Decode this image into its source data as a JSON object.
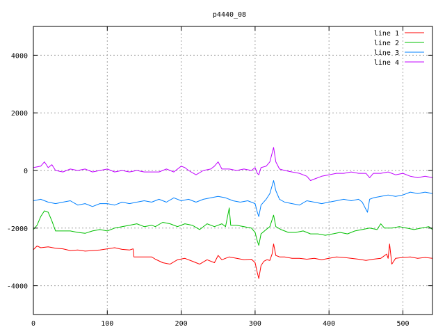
{
  "chart_data": {
    "type": "line",
    "title": "p4440_08",
    "xlabel": "",
    "ylabel": "",
    "xlim": [
      0,
      540
    ],
    "ylim": [
      -5000,
      5000
    ],
    "x_ticks": [
      0,
      100,
      200,
      300,
      400,
      500
    ],
    "y_ticks": [
      -4000,
      -2000,
      0,
      2000,
      4000
    ],
    "grid": true,
    "legend_position": "top-right",
    "series": [
      {
        "name": "line 1",
        "color": "#ff0000",
        "points": [
          [
            0,
            -2750
          ],
          [
            5,
            -2620
          ],
          [
            10,
            -2680
          ],
          [
            20,
            -2650
          ],
          [
            30,
            -2700
          ],
          [
            40,
            -2720
          ],
          [
            50,
            -2780
          ],
          [
            60,
            -2760
          ],
          [
            70,
            -2800
          ],
          [
            80,
            -2780
          ],
          [
            90,
            -2760
          ],
          [
            100,
            -2720
          ],
          [
            110,
            -2680
          ],
          [
            120,
            -2740
          ],
          [
            130,
            -2760
          ],
          [
            135,
            -2720
          ],
          [
            136,
            -3000
          ],
          [
            150,
            -3000
          ],
          [
            160,
            -3000
          ],
          [
            165,
            -3080
          ],
          [
            175,
            -3200
          ],
          [
            185,
            -3250
          ],
          [
            195,
            -3100
          ],
          [
            205,
            -3050
          ],
          [
            215,
            -3150
          ],
          [
            225,
            -3250
          ],
          [
            235,
            -3100
          ],
          [
            245,
            -3200
          ],
          [
            250,
            -2950
          ],
          [
            255,
            -3100
          ],
          [
            265,
            -3000
          ],
          [
            275,
            -3050
          ],
          [
            285,
            -3100
          ],
          [
            295,
            -3080
          ],
          [
            300,
            -3200
          ],
          [
            303,
            -3550
          ],
          [
            305,
            -3750
          ],
          [
            308,
            -3300
          ],
          [
            312,
            -3150
          ],
          [
            316,
            -3100
          ],
          [
            320,
            -3120
          ],
          [
            323,
            -2900
          ],
          [
            325,
            -2550
          ],
          [
            328,
            -2950
          ],
          [
            333,
            -3000
          ],
          [
            340,
            -3000
          ],
          [
            350,
            -3050
          ],
          [
            360,
            -3050
          ],
          [
            370,
            -3080
          ],
          [
            380,
            -3050
          ],
          [
            390,
            -3100
          ],
          [
            400,
            -3050
          ],
          [
            410,
            -3000
          ],
          [
            420,
            -3020
          ],
          [
            430,
            -3050
          ],
          [
            440,
            -3080
          ],
          [
            450,
            -3120
          ],
          [
            460,
            -3080
          ],
          [
            470,
            -3050
          ],
          [
            478,
            -2900
          ],
          [
            480,
            -3050
          ],
          [
            482,
            -2550
          ],
          [
            485,
            -3250
          ],
          [
            490,
            -3050
          ],
          [
            500,
            -3020
          ],
          [
            510,
            -3000
          ],
          [
            520,
            -3050
          ],
          [
            530,
            -3020
          ],
          [
            540,
            -3050
          ]
        ]
      },
      {
        "name": "line 2",
        "color": "#00c000",
        "points": [
          [
            0,
            -2050
          ],
          [
            5,
            -1900
          ],
          [
            10,
            -1600
          ],
          [
            15,
            -1400
          ],
          [
            20,
            -1450
          ],
          [
            25,
            -1750
          ],
          [
            30,
            -2100
          ],
          [
            40,
            -2100
          ],
          [
            50,
            -2100
          ],
          [
            60,
            -2150
          ],
          [
            70,
            -2180
          ],
          [
            80,
            -2100
          ],
          [
            90,
            -2050
          ],
          [
            100,
            -2100
          ],
          [
            110,
            -2000
          ],
          [
            120,
            -1950
          ],
          [
            130,
            -1900
          ],
          [
            140,
            -1850
          ],
          [
            150,
            -1950
          ],
          [
            160,
            -1900
          ],
          [
            165,
            -1950
          ],
          [
            175,
            -1800
          ],
          [
            185,
            -1850
          ],
          [
            195,
            -1950
          ],
          [
            205,
            -1850
          ],
          [
            215,
            -1900
          ],
          [
            225,
            -2050
          ],
          [
            235,
            -1850
          ],
          [
            245,
            -1950
          ],
          [
            255,
            -1850
          ],
          [
            260,
            -1950
          ],
          [
            265,
            -1300
          ],
          [
            267,
            -1900
          ],
          [
            275,
            -1900
          ],
          [
            285,
            -1950
          ],
          [
            295,
            -2000
          ],
          [
            300,
            -2150
          ],
          [
            303,
            -2450
          ],
          [
            305,
            -2600
          ],
          [
            308,
            -2200
          ],
          [
            315,
            -2050
          ],
          [
            320,
            -1950
          ],
          [
            325,
            -1550
          ],
          [
            328,
            -1950
          ],
          [
            335,
            -2050
          ],
          [
            345,
            -2150
          ],
          [
            355,
            -2150
          ],
          [
            365,
            -2100
          ],
          [
            375,
            -2200
          ],
          [
            385,
            -2200
          ],
          [
            395,
            -2250
          ],
          [
            405,
            -2200
          ],
          [
            415,
            -2150
          ],
          [
            425,
            -2200
          ],
          [
            435,
            -2100
          ],
          [
            445,
            -2050
          ],
          [
            455,
            -2000
          ],
          [
            465,
            -2050
          ],
          [
            470,
            -1850
          ],
          [
            475,
            -2000
          ],
          [
            485,
            -2000
          ],
          [
            495,
            -1950
          ],
          [
            505,
            -2000
          ],
          [
            515,
            -2050
          ],
          [
            525,
            -2000
          ],
          [
            535,
            -1950
          ],
          [
            540,
            -2050
          ]
        ]
      },
      {
        "name": "line 3",
        "color": "#0080ff",
        "points": [
          [
            0,
            -1050
          ],
          [
            10,
            -1000
          ],
          [
            20,
            -1100
          ],
          [
            30,
            -1150
          ],
          [
            40,
            -1100
          ],
          [
            50,
            -1050
          ],
          [
            60,
            -1200
          ],
          [
            70,
            -1150
          ],
          [
            80,
            -1250
          ],
          [
            90,
            -1150
          ],
          [
            100,
            -1150
          ],
          [
            110,
            -1200
          ],
          [
            120,
            -1100
          ],
          [
            130,
            -1150
          ],
          [
            140,
            -1100
          ],
          [
            150,
            -1050
          ],
          [
            160,
            -1100
          ],
          [
            170,
            -1000
          ],
          [
            180,
            -1100
          ],
          [
            190,
            -950
          ],
          [
            200,
            -1050
          ],
          [
            210,
            -1000
          ],
          [
            220,
            -1100
          ],
          [
            230,
            -1000
          ],
          [
            240,
            -950
          ],
          [
            250,
            -900
          ],
          [
            260,
            -950
          ],
          [
            270,
            -1050
          ],
          [
            280,
            -1100
          ],
          [
            290,
            -1050
          ],
          [
            300,
            -1150
          ],
          [
            303,
            -1450
          ],
          [
            305,
            -1600
          ],
          [
            308,
            -1200
          ],
          [
            315,
            -1000
          ],
          [
            320,
            -800
          ],
          [
            325,
            -350
          ],
          [
            328,
            -700
          ],
          [
            333,
            -1000
          ],
          [
            340,
            -1100
          ],
          [
            350,
            -1150
          ],
          [
            360,
            -1200
          ],
          [
            370,
            -1050
          ],
          [
            380,
            -1100
          ],
          [
            390,
            -1150
          ],
          [
            400,
            -1100
          ],
          [
            410,
            -1050
          ],
          [
            420,
            -1000
          ],
          [
            430,
            -1050
          ],
          [
            440,
            -1000
          ],
          [
            445,
            -1100
          ],
          [
            450,
            -1350
          ],
          [
            452,
            -1450
          ],
          [
            455,
            -1000
          ],
          [
            460,
            -950
          ],
          [
            470,
            -900
          ],
          [
            480,
            -850
          ],
          [
            490,
            -900
          ],
          [
            500,
            -850
          ],
          [
            510,
            -750
          ],
          [
            520,
            -800
          ],
          [
            530,
            -750
          ],
          [
            540,
            -800
          ]
        ]
      },
      {
        "name": "line 4",
        "color": "#c000ff",
        "points": [
          [
            0,
            100
          ],
          [
            10,
            150
          ],
          [
            15,
            300
          ],
          [
            20,
            100
          ],
          [
            25,
            200
          ],
          [
            30,
            0
          ],
          [
            40,
            -50
          ],
          [
            50,
            50
          ],
          [
            60,
            0
          ],
          [
            70,
            50
          ],
          [
            80,
            -50
          ],
          [
            90,
            0
          ],
          [
            100,
            50
          ],
          [
            110,
            -50
          ],
          [
            120,
            0
          ],
          [
            130,
            -50
          ],
          [
            140,
            0
          ],
          [
            150,
            -50
          ],
          [
            160,
            -50
          ],
          [
            170,
            -50
          ],
          [
            180,
            50
          ],
          [
            190,
            -50
          ],
          [
            200,
            150
          ],
          [
            205,
            100
          ],
          [
            210,
            0
          ],
          [
            220,
            -150
          ],
          [
            230,
            0
          ],
          [
            240,
            50
          ],
          [
            245,
            150
          ],
          [
            250,
            300
          ],
          [
            255,
            50
          ],
          [
            265,
            50
          ],
          [
            275,
            0
          ],
          [
            285,
            50
          ],
          [
            295,
            0
          ],
          [
            300,
            100
          ],
          [
            303,
            -100
          ],
          [
            305,
            -150
          ],
          [
            308,
            100
          ],
          [
            315,
            150
          ],
          [
            320,
            300
          ],
          [
            325,
            800
          ],
          [
            328,
            300
          ],
          [
            333,
            50
          ],
          [
            340,
            0
          ],
          [
            350,
            -50
          ],
          [
            360,
            -100
          ],
          [
            370,
            -200
          ],
          [
            375,
            -350
          ],
          [
            380,
            -300
          ],
          [
            390,
            -200
          ],
          [
            400,
            -150
          ],
          [
            410,
            -100
          ],
          [
            420,
            -100
          ],
          [
            430,
            -50
          ],
          [
            440,
            -100
          ],
          [
            450,
            -100
          ],
          [
            455,
            -250
          ],
          [
            460,
            -100
          ],
          [
            470,
            -100
          ],
          [
            480,
            -50
          ],
          [
            490,
            -150
          ],
          [
            500,
            -100
          ],
          [
            510,
            -200
          ],
          [
            520,
            -250
          ],
          [
            530,
            -200
          ],
          [
            540,
            -250
          ]
        ]
      }
    ]
  }
}
